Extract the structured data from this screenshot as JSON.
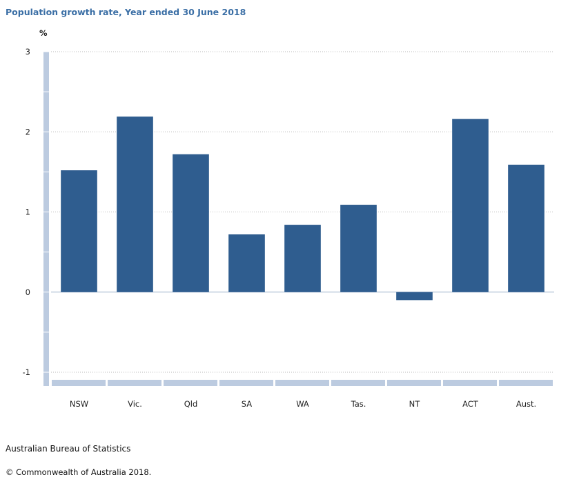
{
  "chart_data": {
    "type": "bar",
    "title": "Population growth rate, Year ended 30 June 2018",
    "ylabel": "%",
    "xlabel": "",
    "categories": [
      "NSW",
      "Vic.",
      "Qld",
      "SA",
      "WA",
      "Tas.",
      "NT",
      "ACT",
      "Aust."
    ],
    "values": [
      1.52,
      2.19,
      1.72,
      0.72,
      0.84,
      1.09,
      -0.1,
      2.16,
      1.59
    ],
    "ylim": [
      -1,
      3
    ],
    "yticks": [
      3,
      2,
      1,
      0,
      -1
    ],
    "grid": true,
    "bar_color": "#2f5d8f",
    "axis_color": "#bccbe0"
  },
  "source": "Australian Bureau of Statistics",
  "copyright": "© Commonwealth of Australia 2018."
}
